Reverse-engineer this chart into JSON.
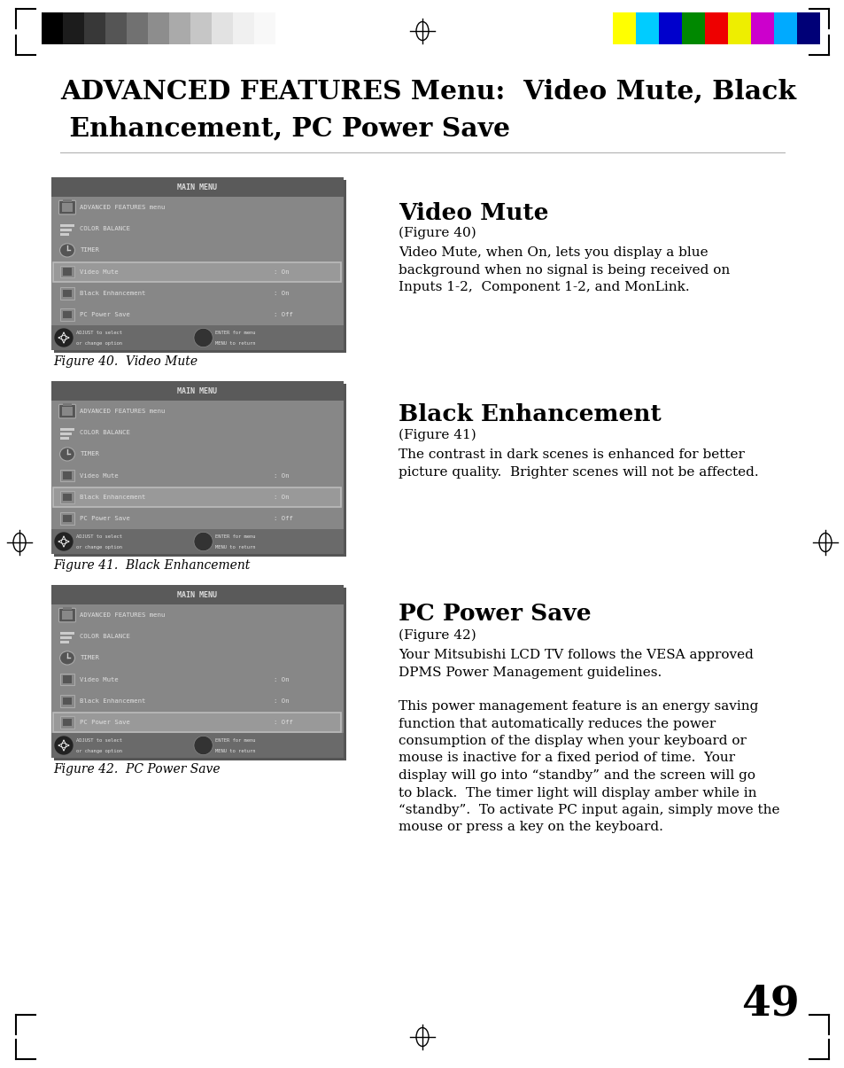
{
  "page_bg": "#ffffff",
  "title_line1": "ADVANCED FEATURES Menu:  Video Mute, Black",
  "title_line2": " Enhancement, PC Power Save",
  "bw_colors": [
    "#000000",
    "#1c1c1c",
    "#383838",
    "#555555",
    "#717171",
    "#8d8d8d",
    "#aaaaaa",
    "#c6c6c6",
    "#e2e2e2",
    "#f0f0f0",
    "#f8f8f8"
  ],
  "color_colors": [
    "#ffff00",
    "#00ccff",
    "#0000cc",
    "#008800",
    "#ee0000",
    "#eeee00",
    "#cc00cc",
    "#00aaff",
    "#000077"
  ],
  "fig1_label": "Figure 40.  Video Mute",
  "fig2_label": "Figure 41.  Black Enhancement",
  "fig3_label": "Figure 42.  PC Power Save",
  "section1_title": "Video Mute",
  "section1_subtitle": "(Figure 40)",
  "section1_body": "Video Mute, when On, lets you display a blue\nbackground when no signal is being received on\nInputs 1-2,  Component 1-2, and MonLink.",
  "section2_title": "Black Enhancement",
  "section2_subtitle": "(Figure 41)",
  "section2_body": "The contrast in dark scenes is enhanced for better\npicture quality.  Brighter scenes will not be affected.",
  "section3_title": "PC Power Save",
  "section3_subtitle": "(Figure 42)",
  "section3_body1": "Your Mitsubishi LCD TV follows the VESA approved\nDPMS Power Management guidelines.",
  "section3_body2": "This power management feature is an energy saving\nfunction that automatically reduces the power\nconsumption of the display when your keyboard or\nmouse is inactive for a fixed period of time.  Your\ndisplay will go into “standby” and the screen will go\nto black.  The timer light will display amber while in\n“standby”.  To activate PC input again, simply move the\nmouse or press a key on the keyboard.",
  "page_number": "49"
}
